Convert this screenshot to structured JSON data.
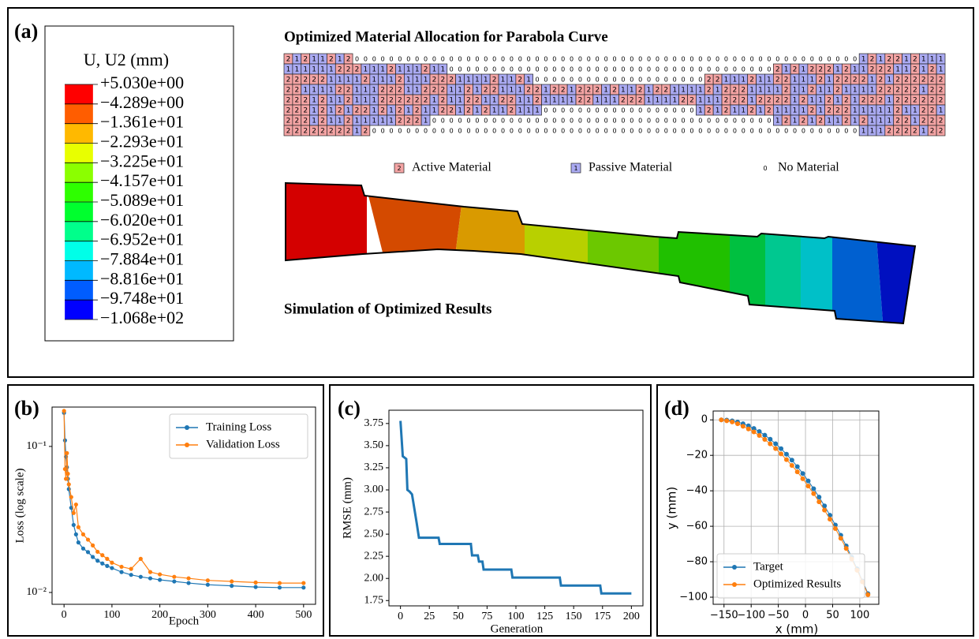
{
  "panel_a": {
    "panel": "(a)",
    "colorbar": {
      "title": "U, U2 (mm)",
      "labels": [
        "+5.030e+00",
        "−4.289e+00",
        "−1.361e+01",
        "−2.293e+01",
        "−3.225e+01",
        "−4.157e+01",
        "−5.089e+01",
        "−6.020e+01",
        "−6.952e+01",
        "−7.884e+01",
        "−8.816e+01",
        "−9.748e+01",
        "−1.068e+02"
      ],
      "colors": [
        "#ff0000",
        "#ff5d00",
        "#ffb900",
        "#e8ff00",
        "#8bff00",
        "#2eff00",
        "#00ff2e",
        "#00ff8b",
        "#00ffe8",
        "#00b9ff",
        "#005dff",
        "#0000ff"
      ]
    },
    "grid": {
      "title": "Optimized Material Allocation for Parabola Curve",
      "rows": [
        [
          2,
          1,
          2,
          1,
          1,
          2,
          1,
          2,
          0,
          0,
          0,
          0,
          0,
          0,
          0,
          0,
          0,
          0,
          0,
          0,
          0,
          0,
          0,
          0,
          0,
          0,
          0,
          0,
          0,
          0,
          0,
          0,
          0,
          0,
          0,
          0,
          0,
          0,
          0,
          0,
          0,
          0,
          0,
          0,
          0,
          0,
          0,
          0,
          0,
          0,
          0,
          0,
          0,
          0,
          0,
          0,
          0,
          0,
          0,
          0,
          0,
          0,
          0,
          0,
          0,
          0,
          0,
          1,
          2,
          1,
          2,
          2,
          1,
          2,
          1,
          1,
          1
        ],
        [
          1,
          1,
          1,
          1,
          1,
          1,
          2,
          2,
          2,
          1,
          1,
          1,
          2,
          1,
          1,
          1,
          2,
          1,
          1,
          0,
          0,
          0,
          0,
          0,
          0,
          0,
          0,
          0,
          0,
          0,
          0,
          0,
          0,
          0,
          0,
          0,
          0,
          0,
          0,
          0,
          0,
          0,
          0,
          0,
          0,
          0,
          0,
          0,
          0,
          0,
          0,
          0,
          0,
          0,
          0,
          0,
          0,
          2,
          1,
          2,
          1,
          2,
          2,
          2,
          1,
          2,
          1,
          1,
          2,
          2,
          2,
          1,
          1,
          2,
          1,
          2,
          1
        ],
        [
          2,
          2,
          2,
          2,
          2,
          1,
          1,
          1,
          1,
          2,
          1,
          1,
          1,
          2,
          1,
          1,
          1,
          2,
          2,
          2,
          1,
          1,
          1,
          1,
          2,
          1,
          1,
          2,
          1,
          0,
          0,
          0,
          0,
          0,
          0,
          0,
          0,
          0,
          0,
          0,
          0,
          0,
          0,
          0,
          0,
          0,
          0,
          0,
          0,
          2,
          2,
          1,
          1,
          1,
          2,
          1,
          1,
          2,
          2,
          1,
          1,
          1,
          2,
          1,
          2,
          2,
          2,
          2,
          1,
          2,
          1,
          2,
          2,
          2,
          2,
          2,
          2
        ],
        [
          2,
          2,
          1,
          1,
          1,
          1,
          2,
          2,
          1,
          1,
          1,
          2,
          2,
          2,
          1,
          1,
          2,
          2,
          2,
          1,
          1,
          2,
          1,
          2,
          2,
          1,
          1,
          1,
          2,
          2,
          1,
          2,
          2,
          1,
          2,
          2,
          2,
          1,
          2,
          1,
          1,
          2,
          1,
          2,
          2,
          1,
          1,
          1,
          1,
          2,
          1,
          2,
          2,
          2,
          1,
          1,
          1,
          1,
          2,
          1,
          1,
          2,
          1,
          1,
          2,
          1,
          1,
          1,
          1,
          2,
          2,
          2,
          2,
          2,
          1,
          2,
          2
        ],
        [
          2,
          2,
          2,
          1,
          2,
          1,
          1,
          2,
          1,
          1,
          1,
          2,
          2,
          2,
          2,
          2,
          2,
          1,
          2,
          1,
          1,
          2,
          2,
          1,
          1,
          2,
          2,
          1,
          1,
          2,
          1,
          1,
          1,
          1,
          2,
          2,
          1,
          1,
          1,
          2,
          2,
          2,
          1,
          1,
          1,
          1,
          2,
          2,
          1,
          1,
          1,
          2,
          2,
          2,
          1,
          2,
          2,
          2,
          2,
          1,
          2,
          1,
          1,
          2,
          1,
          2,
          1,
          2,
          2,
          2,
          1,
          2,
          2,
          2,
          2,
          2,
          2
        ],
        [
          2,
          2,
          2,
          1,
          2,
          1,
          2,
          1,
          2,
          2,
          1,
          2,
          1,
          2,
          1,
          2,
          1,
          1,
          2,
          2,
          1,
          2,
          1,
          2,
          1,
          1,
          2,
          1,
          1,
          1,
          0,
          0,
          0,
          0,
          0,
          0,
          0,
          0,
          0,
          0,
          0,
          0,
          0,
          0,
          0,
          0,
          0,
          0,
          1,
          2,
          1,
          2,
          1,
          1,
          2,
          1,
          2,
          1,
          1,
          1,
          1,
          2,
          1,
          2,
          2,
          2,
          1,
          1,
          1,
          1,
          1,
          2,
          1,
          1,
          2,
          2,
          1
        ],
        [
          2,
          2,
          2,
          1,
          2,
          1,
          1,
          2,
          1,
          1,
          1,
          1,
          1,
          2,
          2,
          2,
          1,
          0,
          0,
          0,
          0,
          0,
          0,
          0,
          0,
          0,
          0,
          0,
          0,
          0,
          0,
          0,
          0,
          0,
          0,
          0,
          0,
          0,
          0,
          0,
          0,
          0,
          0,
          0,
          0,
          0,
          0,
          0,
          0,
          0,
          0,
          0,
          0,
          0,
          0,
          0,
          0,
          1,
          2,
          1,
          2,
          1,
          2,
          1,
          1,
          2,
          1,
          2,
          1,
          1,
          1,
          2,
          2,
          1,
          2,
          2,
          2
        ],
        [
          2,
          2,
          2,
          2,
          2,
          2,
          2,
          2,
          1,
          2,
          0,
          0,
          0,
          0,
          0,
          0,
          0,
          0,
          0,
          0,
          0,
          0,
          0,
          0,
          0,
          0,
          0,
          0,
          0,
          0,
          0,
          0,
          0,
          0,
          0,
          0,
          0,
          0,
          0,
          0,
          0,
          0,
          0,
          0,
          0,
          0,
          0,
          0,
          0,
          0,
          0,
          0,
          0,
          0,
          0,
          0,
          0,
          0,
          0,
          0,
          0,
          0,
          0,
          0,
          0,
          0,
          0,
          1,
          1,
          1,
          2,
          2,
          2,
          2,
          1,
          2,
          2
        ]
      ],
      "legend": [
        {
          "symbol": 2,
          "label": "Active Material",
          "color": "#f4a4a4"
        },
        {
          "symbol": 1,
          "label": "Passive Material",
          "color": "#aaaaf2"
        },
        {
          "symbol": 0,
          "label": "No Material"
        }
      ]
    },
    "simulation_title": "Simulation of Optimized Results"
  },
  "chart_data": [
    {
      "type": "line",
      "panel": "(b)",
      "xlabel": "Epoch",
      "ylabel": "Loss (log scale)",
      "x": [
        0,
        2,
        4,
        6,
        8,
        10,
        15,
        20,
        25,
        30,
        40,
        50,
        60,
        70,
        80,
        90,
        100,
        120,
        140,
        160,
        180,
        200,
        230,
        260,
        300,
        350,
        400,
        450,
        500
      ],
      "series": [
        {
          "name": "Training Loss",
          "color": "#1f77b4",
          "values": [
            0.17,
            0.11,
            0.085,
            0.072,
            0.06,
            0.051,
            0.038,
            0.029,
            0.025,
            0.022,
            0.02,
            0.0189,
            0.0175,
            0.0165,
            0.0158,
            0.0152,
            0.0147,
            0.0138,
            0.0132,
            0.0128,
            0.0125,
            0.0122,
            0.0119,
            0.0116,
            0.0113,
            0.0111,
            0.0109,
            0.0108,
            0.0108
          ]
        },
        {
          "name": "Validation Loss",
          "color": "#ff7f0e",
          "values": [
            0.175,
            0.07,
            0.06,
            0.09,
            0.065,
            0.055,
            0.045,
            0.035,
            0.04,
            0.028,
            0.025,
            0.023,
            0.021,
            0.019,
            0.018,
            0.017,
            0.016,
            0.015,
            0.0145,
            0.017,
            0.0138,
            0.0133,
            0.0128,
            0.0125,
            0.0121,
            0.0119,
            0.0117,
            0.0116,
            0.0116
          ]
        }
      ],
      "markers": true,
      "yscale": "log",
      "xlim": [
        -25,
        525
      ],
      "xticks": [
        0,
        100,
        200,
        300,
        400,
        500
      ],
      "ylim": [
        0.0083,
        0.186
      ],
      "yticks": [
        {
          "value": 0.1,
          "label": "10⁻¹"
        },
        {
          "value": 0.01,
          "label": "10⁻²"
        }
      ],
      "grid": false,
      "legend": "upper right"
    },
    {
      "type": "line",
      "panel": "(c)",
      "xlabel": "Generation",
      "ylabel": "RMSE (mm)",
      "x": [
        0,
        2,
        5,
        6,
        8,
        10,
        14,
        16,
        33,
        34,
        61,
        62,
        67,
        68,
        71,
        72,
        96,
        97,
        138,
        139,
        173,
        174,
        200
      ],
      "series": [
        {
          "color": "#1f77b4",
          "values": [
            3.78,
            3.38,
            3.35,
            3.0,
            2.98,
            2.95,
            2.63,
            2.46,
            2.46,
            2.39,
            2.39,
            2.26,
            2.26,
            2.19,
            2.19,
            2.1,
            2.1,
            2.01,
            2.01,
            1.92,
            1.92,
            1.83,
            1.83
          ]
        }
      ],
      "markers": false,
      "xlim": [
        -10,
        210
      ],
      "xticks": [
        0,
        25,
        50,
        75,
        100,
        125,
        150,
        175,
        200
      ],
      "ylim": [
        1.69,
        3.9
      ],
      "yticks": [
        1.75,
        {
          "value": 2,
          "label": "2.00"
        },
        2.25,
        {
          "value": 2.5,
          "label": "2.50"
        },
        2.75,
        {
          "value": 3,
          "label": "3.00"
        },
        3.25,
        {
          "value": 3.5,
          "label": "3.50"
        },
        3.75
      ],
      "grid": false
    },
    {
      "type": "line",
      "panel": "(d)",
      "xlabel": "x (mm)",
      "ylabel": "y (mm)",
      "x": [
        -155,
        -145,
        -135,
        -125,
        -115,
        -105,
        -95,
        -85,
        -75,
        -65,
        -55,
        -45,
        -35,
        -25,
        -15,
        -5,
        5,
        15,
        25,
        35,
        45,
        55,
        65,
        75,
        85,
        95,
        105,
        115
      ],
      "series": [
        {
          "name": "Target",
          "color": "#1f77b4",
          "values": [
            0,
            -0.13,
            -0.54,
            -1.21,
            -2.15,
            -3.36,
            -4.84,
            -6.59,
            -8.6,
            -10.89,
            -13.44,
            -16.26,
            -19.35,
            -22.71,
            -26.34,
            -30.24,
            -34.41,
            -38.84,
            -43.55,
            -48.52,
            -53.76,
            -59.27,
            -65.05,
            -71.1,
            -77.41,
            -84,
            -90.85,
            -97.98
          ]
        },
        {
          "name": "Optimized Results",
          "color": "#ff7f0e",
          "values": [
            0,
            -0.5,
            -1.2,
            -2.2,
            -3.6,
            -5.1,
            -6.8,
            -8.8,
            -11,
            -13.5,
            -16.2,
            -19.2,
            -22.4,
            -25.7,
            -29.3,
            -33.2,
            -37.3,
            -41.6,
            -46.2,
            -50.9,
            -56,
            -61.3,
            -66.8,
            -72.5,
            -78.5,
            -84.8,
            -91.4,
            -98.6
          ]
        }
      ],
      "markers": true,
      "xlim": [
        -170,
        135
      ],
      "xticks": [
        {
          "value": -150,
          "label": "−150"
        },
        {
          "value": -100,
          "label": "−100"
        },
        {
          "value": -50,
          "label": "−50"
        },
        0,
        50,
        100
      ],
      "ylim": [
        -104,
        5
      ],
      "yticks": [
        {
          "value": -100,
          "label": "−100"
        },
        {
          "value": -80,
          "label": "−80"
        },
        {
          "value": -60,
          "label": "−60"
        },
        {
          "value": -40,
          "label": "−40"
        },
        {
          "value": -20,
          "label": "−20"
        },
        0
      ],
      "grid": true,
      "legend": "lower left"
    }
  ]
}
